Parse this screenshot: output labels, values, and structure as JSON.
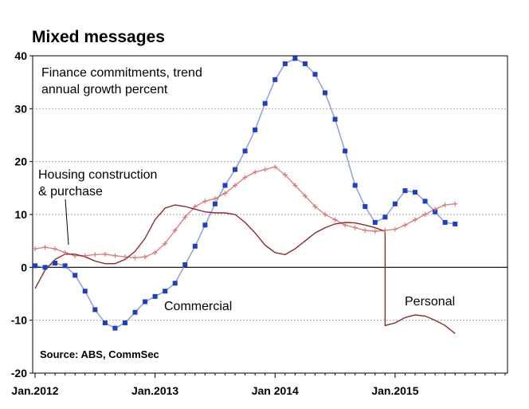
{
  "chart_data": {
    "type": "line",
    "title": "Mixed messages",
    "annotation": "Finance commitments, trend annual growth percent",
    "annotation_lines": [
      "Finance commitments, trend",
      "annual growth percent"
    ],
    "source": "Source: ABS, CommSec",
    "ylim": [
      -20,
      40
    ],
    "yticks": [
      40,
      30,
      20,
      10,
      0,
      -10,
      -20
    ],
    "xlim": [
      "2012-01",
      "2015-12"
    ],
    "x_tick_labels": [
      {
        "label": "Jan.2012",
        "date": "2012-01"
      },
      {
        "label": "Jan.2013",
        "date": "2013-01"
      },
      {
        "label": "Jan 2014",
        "date": "2014-01"
      },
      {
        "label": "Jan.2015",
        "date": "2015-01"
      }
    ],
    "grid": true,
    "colors": {
      "commercial": "#1f3fbf",
      "commercial_line": "#8da0db",
      "housing": "#d9797b",
      "personal": "#8b2a2a",
      "grid": "#aaaaaa",
      "zero": "#000000"
    },
    "series": [
      {
        "name": "Commercial",
        "key": "commercial",
        "label_lines": [
          "Commercial"
        ],
        "x": [
          "2012-01",
          "2012-02",
          "2012-03",
          "2012-04",
          "2012-05",
          "2012-06",
          "2012-07",
          "2012-08",
          "2012-09",
          "2012-10",
          "2012-11",
          "2012-12",
          "2013-01",
          "2013-02",
          "2013-03",
          "2013-04",
          "2013-05",
          "2013-06",
          "2013-07",
          "2013-08",
          "2013-09",
          "2013-10",
          "2013-11",
          "2013-12",
          "2014-01",
          "2014-02",
          "2014-03",
          "2014-04",
          "2014-05",
          "2014-06",
          "2014-07",
          "2014-08",
          "2014-09",
          "2014-10",
          "2014-11",
          "2014-12",
          "2015-01",
          "2015-02",
          "2015-03",
          "2015-04",
          "2015-05",
          "2015-06",
          "2015-07"
        ],
        "values": [
          0.3,
          0.0,
          0.8,
          0.3,
          -1.5,
          -4.5,
          -8.0,
          -10.5,
          -11.5,
          -10.5,
          -8.5,
          -6.5,
          -5.5,
          -4.5,
          -3.0,
          0.5,
          4.0,
          8.0,
          12.0,
          15.5,
          18.5,
          22.0,
          26.0,
          31.0,
          35.5,
          38.5,
          39.5,
          38.5,
          36.5,
          33.0,
          28.0,
          22.0,
          15.5,
          11.5,
          8.5,
          9.5,
          12.0,
          14.5,
          14.2,
          12.5,
          10.5,
          8.5,
          8.2
        ]
      },
      {
        "name": "Housing construction & purchase",
        "key": "housing",
        "label_lines": [
          "Housing construction",
          "& purchase"
        ],
        "x": [
          "2012-01",
          "2012-02",
          "2012-03",
          "2012-04",
          "2012-05",
          "2012-06",
          "2012-07",
          "2012-08",
          "2012-09",
          "2012-10",
          "2012-11",
          "2012-12",
          "2013-01",
          "2013-02",
          "2013-03",
          "2013-04",
          "2013-05",
          "2013-06",
          "2013-07",
          "2013-08",
          "2013-09",
          "2013-10",
          "2013-11",
          "2013-12",
          "2014-01",
          "2014-02",
          "2014-03",
          "2014-04",
          "2014-05",
          "2014-06",
          "2014-07",
          "2014-08",
          "2014-09",
          "2014-10",
          "2014-11",
          "2014-12",
          "2015-01",
          "2015-02",
          "2015-03",
          "2015-04",
          "2015-05",
          "2015-06",
          "2015-07"
        ],
        "values": [
          3.5,
          3.8,
          3.5,
          2.8,
          2.2,
          2.2,
          2.4,
          2.5,
          2.2,
          2.0,
          1.8,
          2.0,
          2.8,
          4.5,
          7.0,
          9.5,
          11.5,
          12.5,
          13.0,
          14.0,
          15.5,
          17.0,
          18.0,
          18.5,
          19.0,
          17.5,
          15.5,
          13.5,
          11.5,
          10.0,
          9.0,
          8.0,
          7.5,
          7.0,
          6.8,
          7.0,
          7.2,
          8.0,
          9.0,
          10.0,
          11.0,
          11.8,
          12.0
        ]
      },
      {
        "name": "Personal",
        "key": "personal",
        "label_lines": [
          "Personal"
        ],
        "x": [
          "2012-01",
          "2012-02",
          "2012-03",
          "2012-04",
          "2012-05",
          "2012-06",
          "2012-07",
          "2012-08",
          "2012-09",
          "2012-10",
          "2012-11",
          "2012-12",
          "2013-01",
          "2013-02",
          "2013-03",
          "2013-04",
          "2013-05",
          "2013-06",
          "2013-07",
          "2013-08",
          "2013-09",
          "2013-10",
          "2013-11",
          "2013-12",
          "2014-01",
          "2014-02",
          "2014-03",
          "2014-04",
          "2014-05",
          "2014-06",
          "2014-07",
          "2014-08",
          "2014-09",
          "2014-10",
          "2014-11",
          "2014-12",
          "2014-12",
          "2015-01",
          "2015-02",
          "2015-03",
          "2015-04",
          "2015-05",
          "2015-06",
          "2015-07"
        ],
        "values": [
          -4.0,
          -0.5,
          1.5,
          2.5,
          2.5,
          2.0,
          1.2,
          0.7,
          0.7,
          1.5,
          3.0,
          5.5,
          9.0,
          11.2,
          11.8,
          11.5,
          11.0,
          10.5,
          10.3,
          10.3,
          10.0,
          8.5,
          6.5,
          4.2,
          2.8,
          2.4,
          3.5,
          5.0,
          6.5,
          7.5,
          8.2,
          8.5,
          8.4,
          8.0,
          7.5,
          6.8,
          -11.0,
          -10.5,
          -9.5,
          -9.0,
          -9.2,
          -10.0,
          -11.0,
          -12.5
        ]
      }
    ]
  }
}
